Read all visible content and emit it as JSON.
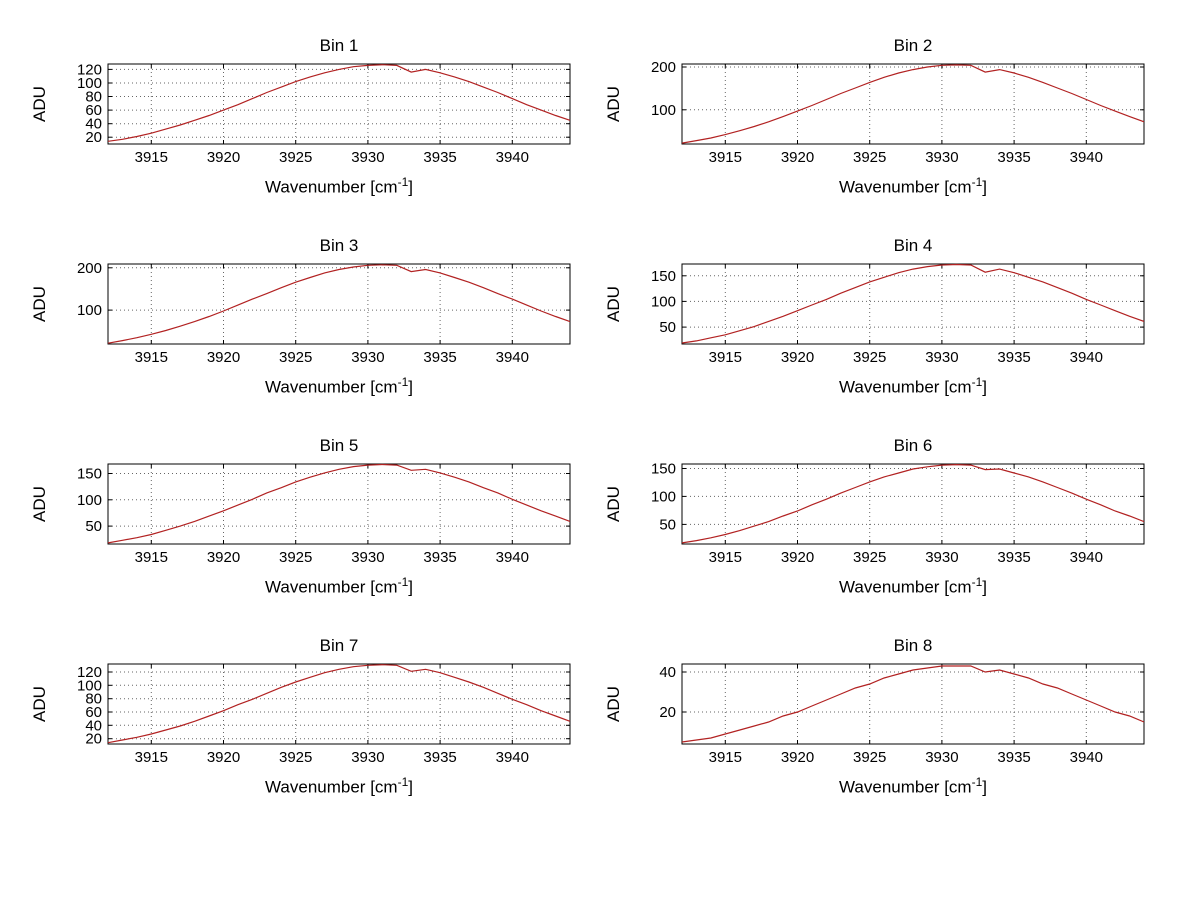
{
  "figure": {
    "background": "#ffffff"
  },
  "chart_data": {
    "type": "line",
    "ylabel": "ADU",
    "xlabel_parts": {
      "pre": "Wavenumber [cm",
      "sup": "-1",
      "post": "]"
    },
    "line_color": "#b22222",
    "grid": true,
    "legend": "none",
    "x": [
      3912,
      3913,
      3914,
      3915,
      3916,
      3917,
      3918,
      3919,
      3920,
      3921,
      3922,
      3923,
      3924,
      3925,
      3926,
      3927,
      3928,
      3929,
      3930,
      3931,
      3932,
      3933,
      3934,
      3935,
      3936,
      3937,
      3938,
      3939,
      3940,
      3941,
      3942,
      3943,
      3944
    ],
    "xlim": [
      3912,
      3944
    ],
    "xticks": [
      3915,
      3920,
      3925,
      3930,
      3935,
      3940
    ],
    "plots": [
      {
        "title": "Bin 1",
        "yticks": [
          20,
          40,
          60,
          80,
          100,
          120
        ],
        "ylim": [
          10,
          128
        ],
        "values": [
          14,
          17,
          21,
          26,
          32,
          38,
          45,
          52,
          60,
          68,
          77,
          86,
          94,
          102,
          109,
          115,
          120,
          124,
          126,
          127,
          126,
          116,
          120,
          115,
          109,
          102,
          94,
          86,
          77,
          68,
          60,
          52,
          45
        ]
      },
      {
        "title": "Bin 2",
        "yticks": [
          100,
          200
        ],
        "ylim": [
          20,
          207
        ],
        "values": [
          22,
          28,
          34,
          42,
          51,
          61,
          72,
          84,
          97,
          110,
          124,
          138,
          151,
          164,
          176,
          186,
          194,
          200,
          204,
          205,
          204,
          188,
          194,
          186,
          176,
          164,
          151,
          138,
          124,
          110,
          97,
          84,
          72
        ]
      },
      {
        "title": "Bin 3",
        "yticks": [
          100,
          200
        ],
        "ylim": [
          20,
          209
        ],
        "values": [
          22,
          28,
          35,
          43,
          52,
          62,
          73,
          85,
          98,
          112,
          126,
          139,
          153,
          166,
          177,
          188,
          196,
          202,
          206,
          207,
          206,
          191,
          196,
          188,
          177,
          166,
          153,
          139,
          126,
          112,
          98,
          85,
          73
        ]
      },
      {
        "title": "Bin 4",
        "yticks": [
          50,
          100,
          150
        ],
        "ylim": [
          17,
          173
        ],
        "values": [
          19,
          23,
          29,
          35,
          43,
          51,
          61,
          71,
          82,
          93,
          104,
          116,
          127,
          138,
          147,
          156,
          163,
          168,
          171,
          172,
          171,
          157,
          163,
          156,
          147,
          138,
          127,
          116,
          104,
          93,
          82,
          71,
          61
        ]
      },
      {
        "title": "Bin 5",
        "yticks": [
          50,
          100,
          150
        ],
        "ylim": [
          16,
          168
        ],
        "values": [
          18,
          23,
          28,
          34,
          42,
          50,
          59,
          69,
          79,
          90,
          101,
          113,
          123,
          134,
          143,
          151,
          158,
          163,
          166,
          167,
          166,
          156,
          158,
          151,
          143,
          134,
          123,
          113,
          101,
          90,
          79,
          69,
          59
        ]
      },
      {
        "title": "Bin 6",
        "yticks": [
          50,
          100,
          150
        ],
        "ylim": [
          15,
          158
        ],
        "values": [
          17,
          21,
          26,
          32,
          39,
          47,
          55,
          65,
          74,
          85,
          95,
          106,
          116,
          126,
          135,
          142,
          149,
          153,
          156,
          157,
          156,
          148,
          149,
          142,
          135,
          126,
          116,
          106,
          95,
          85,
          74,
          65,
          55
        ]
      },
      {
        "title": "Bin 7",
        "yticks": [
          20,
          40,
          60,
          80,
          100,
          120
        ],
        "ylim": [
          12,
          132
        ],
        "values": [
          14,
          18,
          22,
          27,
          33,
          39,
          46,
          54,
          62,
          71,
          79,
          88,
          97,
          105,
          112,
          119,
          124,
          128,
          130,
          131,
          130,
          121,
          124,
          119,
          112,
          105,
          97,
          88,
          79,
          71,
          62,
          54,
          46
        ]
      },
      {
        "title": "Bin 8",
        "yticks": [
          20,
          40
        ],
        "ylim": [
          4,
          44
        ],
        "values": [
          5,
          6,
          7,
          9,
          11,
          13,
          15,
          18,
          20,
          23,
          26,
          29,
          32,
          34,
          37,
          39,
          41,
          42,
          43,
          43,
          43,
          40,
          41,
          39,
          37,
          34,
          32,
          29,
          26,
          23,
          20,
          18,
          15
        ]
      }
    ]
  }
}
